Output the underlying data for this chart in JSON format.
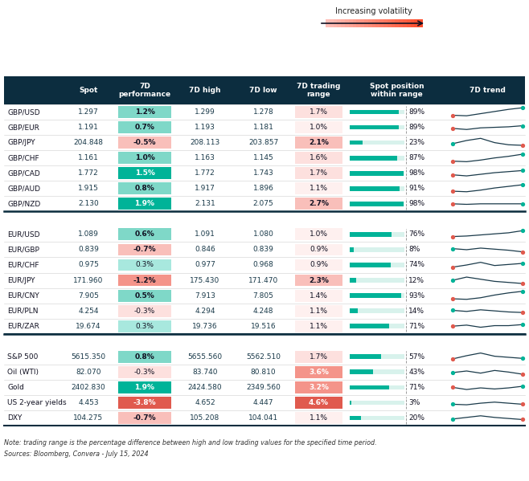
{
  "headers": [
    "",
    "Spot",
    "7D\nperformance",
    "7D high",
    "7D low",
    "7D trading\nrange",
    "Spot position\nwithin range",
    "7D trend"
  ],
  "header_bg": "#0c2d3f",
  "header_fg": "#ffffff",
  "rows": [
    {
      "name": "GBP/USD",
      "spot": "1.297",
      "perf": "1.2%",
      "high": "1.299",
      "low": "1.278",
      "range": "1.7%",
      "pct": 89,
      "perf_val": 1.2,
      "trend": [
        0.2,
        0.15,
        0.35,
        0.55,
        0.75,
        0.9
      ],
      "dot_start": "red",
      "dot_end": "teal"
    },
    {
      "name": "GBP/EUR",
      "spot": "1.191",
      "perf": "0.7%",
      "high": "1.193",
      "low": "1.181",
      "range": "1.0%",
      "pct": 89,
      "perf_val": 0.7,
      "trend": [
        0.4,
        0.3,
        0.45,
        0.5,
        0.55,
        0.65
      ],
      "dot_start": "red",
      "dot_end": "teal"
    },
    {
      "name": "GBP/JPY",
      "spot": "204.848",
      "perf": "-0.5%",
      "high": "208.113",
      "low": "203.857",
      "range": "2.1%",
      "pct": 23,
      "perf_val": -0.5,
      "trend": [
        0.4,
        0.7,
        0.9,
        0.5,
        0.3,
        0.25
      ],
      "dot_start": "teal",
      "dot_end": "red"
    },
    {
      "name": "GBP/CHF",
      "spot": "1.161",
      "perf": "1.0%",
      "high": "1.163",
      "low": "1.145",
      "range": "1.6%",
      "pct": 87,
      "perf_val": 1.0,
      "trend": [
        0.2,
        0.15,
        0.3,
        0.5,
        0.65,
        0.85
      ],
      "dot_start": "red",
      "dot_end": "teal"
    },
    {
      "name": "GBP/CAD",
      "spot": "1.772",
      "perf": "1.5%",
      "high": "1.772",
      "low": "1.743",
      "range": "1.7%",
      "pct": 98,
      "perf_val": 1.5,
      "trend": [
        0.35,
        0.25,
        0.4,
        0.55,
        0.65,
        0.75
      ],
      "dot_start": "red",
      "dot_end": "teal"
    },
    {
      "name": "GBP/AUD",
      "spot": "1.915",
      "perf": "0.8%",
      "high": "1.917",
      "low": "1.896",
      "range": "1.1%",
      "pct": 91,
      "perf_val": 0.8,
      "trend": [
        0.25,
        0.2,
        0.35,
        0.55,
        0.7,
        0.85
      ],
      "dot_start": "red",
      "dot_end": "teal"
    },
    {
      "name": "GBP/NZD",
      "spot": "2.130",
      "perf": "1.9%",
      "high": "2.131",
      "low": "2.075",
      "range": "2.7%",
      "pct": 98,
      "perf_val": 1.9,
      "trend": [
        0.5,
        0.45,
        0.5,
        0.5,
        0.5,
        0.5
      ],
      "dot_start": "red",
      "dot_end": "teal"
    },
    {
      "name": "EUR/USD",
      "spot": "1.089",
      "perf": "0.6%",
      "high": "1.091",
      "low": "1.080",
      "range": "1.0%",
      "pct": 76,
      "perf_val": 0.6,
      "trend": [
        0.3,
        0.35,
        0.45,
        0.55,
        0.65,
        0.85
      ],
      "dot_start": "red",
      "dot_end": "teal"
    },
    {
      "name": "EUR/GBP",
      "spot": "0.839",
      "perf": "-0.7%",
      "high": "0.846",
      "low": "0.839",
      "range": "0.9%",
      "pct": 8,
      "perf_val": -0.7,
      "trend": [
        0.6,
        0.5,
        0.65,
        0.55,
        0.45,
        0.3
      ],
      "dot_start": "teal",
      "dot_end": "red"
    },
    {
      "name": "EUR/CHF",
      "spot": "0.975",
      "perf": "0.3%",
      "high": "0.977",
      "low": "0.968",
      "range": "0.9%",
      "pct": 74,
      "perf_val": 0.3,
      "trend": [
        0.3,
        0.5,
        0.75,
        0.45,
        0.55,
        0.65
      ],
      "dot_start": "red",
      "dot_end": "teal"
    },
    {
      "name": "EUR/JPY",
      "spot": "171.960",
      "perf": "-1.2%",
      "high": "175.430",
      "low": "171.470",
      "range": "2.3%",
      "pct": 12,
      "perf_val": -1.2,
      "trend": [
        0.5,
        0.8,
        0.6,
        0.4,
        0.3,
        0.2
      ],
      "dot_start": "teal",
      "dot_end": "red"
    },
    {
      "name": "EUR/CNY",
      "spot": "7.905",
      "perf": "0.5%",
      "high": "7.913",
      "low": "7.805",
      "range": "1.4%",
      "pct": 93,
      "perf_val": 0.5,
      "trend": [
        0.2,
        0.15,
        0.3,
        0.55,
        0.75,
        0.9
      ],
      "dot_start": "red",
      "dot_end": "teal"
    },
    {
      "name": "EUR/PLN",
      "spot": "4.254",
      "perf": "-0.3%",
      "high": "4.294",
      "low": "4.248",
      "range": "1.1%",
      "pct": 14,
      "perf_val": -0.3,
      "trend": [
        0.55,
        0.45,
        0.6,
        0.5,
        0.4,
        0.35
      ],
      "dot_start": "teal",
      "dot_end": "red"
    },
    {
      "name": "EUR/ZAR",
      "spot": "19.674",
      "perf": "0.3%",
      "high": "19.736",
      "low": "19.516",
      "range": "1.1%",
      "pct": 71,
      "perf_val": 0.3,
      "trend": [
        0.5,
        0.6,
        0.4,
        0.55,
        0.55,
        0.65
      ],
      "dot_start": "red",
      "dot_end": "teal"
    },
    {
      "name": "S&P 500",
      "spot": "5615.350",
      "perf": "0.8%",
      "high": "5655.560",
      "low": "5562.510",
      "range": "1.7%",
      "pct": 57,
      "perf_val": 0.8,
      "trend": [
        0.3,
        0.6,
        0.85,
        0.55,
        0.45,
        0.35
      ],
      "dot_start": "red",
      "dot_end": "teal"
    },
    {
      "name": "Oil (WTI)",
      "spot": "82.070",
      "perf": "-0.3%",
      "high": "83.740",
      "low": "80.810",
      "range": "3.6%",
      "pct": 43,
      "perf_val": -0.3,
      "trend": [
        0.45,
        0.6,
        0.4,
        0.65,
        0.5,
        0.3
      ],
      "dot_start": "teal",
      "dot_end": "red"
    },
    {
      "name": "Gold",
      "spot": "2402.830",
      "perf": "1.9%",
      "high": "2424.580",
      "low": "2349.560",
      "range": "3.2%",
      "pct": 71,
      "perf_val": 1.9,
      "trend": [
        0.5,
        0.3,
        0.45,
        0.35,
        0.45,
        0.6
      ],
      "dot_start": "red",
      "dot_end": "teal"
    },
    {
      "name": "US 2-year yields",
      "spot": "4.453",
      "perf": "-3.8%",
      "high": "4.652",
      "low": "4.447",
      "range": "4.6%",
      "pct": 3,
      "perf_val": -3.8,
      "trend": [
        0.35,
        0.3,
        0.45,
        0.55,
        0.45,
        0.35
      ],
      "dot_start": "teal",
      "dot_end": "red"
    },
    {
      "name": "DXY",
      "spot": "104.275",
      "perf": "-0.7%",
      "high": "105.208",
      "low": "104.041",
      "range": "1.1%",
      "pct": 20,
      "perf_val": -0.7,
      "trend": [
        0.4,
        0.55,
        0.7,
        0.55,
        0.45,
        0.35
      ],
      "dot_start": "teal",
      "dot_end": "red"
    }
  ],
  "group_separators_after": [
    6,
    13
  ],
  "teal": "#00b398",
  "light_teal": "#7fd8c8",
  "mid_teal": "#a8e8de",
  "pale_teal": "#d0f0eb",
  "dark_red": "#e05a4e",
  "mid_red": "#f4948a",
  "light_red": "#f9bfba",
  "pale_red": "#fde0de",
  "pale_pink": "#fef0ef",
  "header_line": "#1a3a4a",
  "bg": "#ffffff",
  "note": "Note: trading range is the percentage difference between high and low trading values for the specified time period.",
  "source": "Sources: Bloomberg, Convera - July 15, 2024",
  "vol_label": "Increasing volatility"
}
